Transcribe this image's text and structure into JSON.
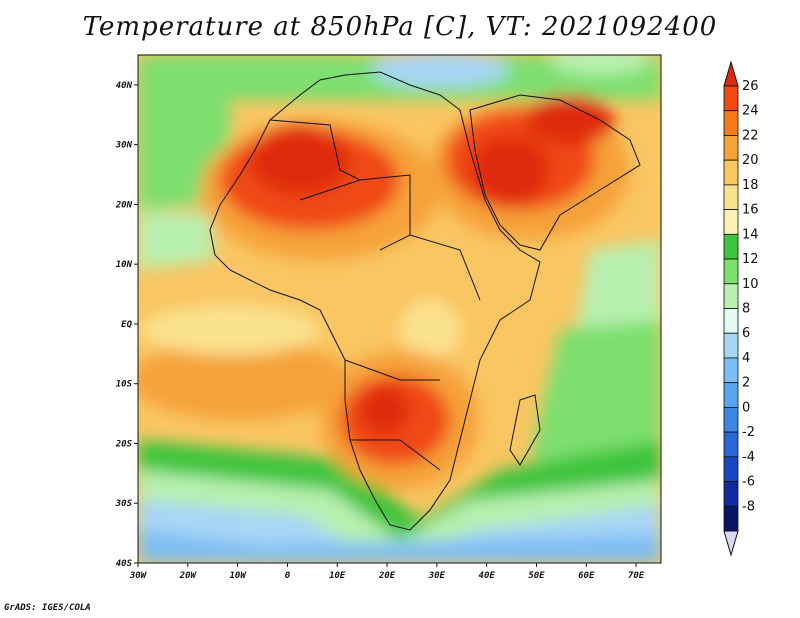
{
  "title": "Temperature at 850hPa [C], VT: 2021092400",
  "footer": "GrADS: IGES/COLA",
  "map": {
    "lon_range": [
      -30,
      75
    ],
    "lat_range": [
      -40,
      45
    ],
    "lon_ticks": [
      "30W",
      "20W",
      "10W",
      "0",
      "10E",
      "20E",
      "30E",
      "40E",
      "50E",
      "60E",
      "70E"
    ],
    "lat_ticks": [
      "40N",
      "30N",
      "20N",
      "10N",
      "EQ",
      "10S",
      "20S",
      "30S",
      "40S"
    ]
  },
  "colorbar": {
    "levels": [
      "26",
      "24",
      "22",
      "20",
      "18",
      "16",
      "14",
      "12",
      "10",
      "8",
      "6",
      "4",
      "2",
      "0",
      "-2",
      "-4",
      "-6",
      "-8"
    ],
    "colors": [
      "#e02a10",
      "#f04a12",
      "#f47a1c",
      "#f6a23a",
      "#f9c662",
      "#fbe28e",
      "#fdf3b4",
      "#3ec43e",
      "#7ddf6e",
      "#b8f0b0",
      "#e4fbf4",
      "#a8d6f6",
      "#7cbef4",
      "#58a4ee",
      "#3c86e4",
      "#2a66d6",
      "#1a46c2",
      "#0e2aa0",
      "#0a1466",
      "#d8d8f8"
    ]
  }
}
